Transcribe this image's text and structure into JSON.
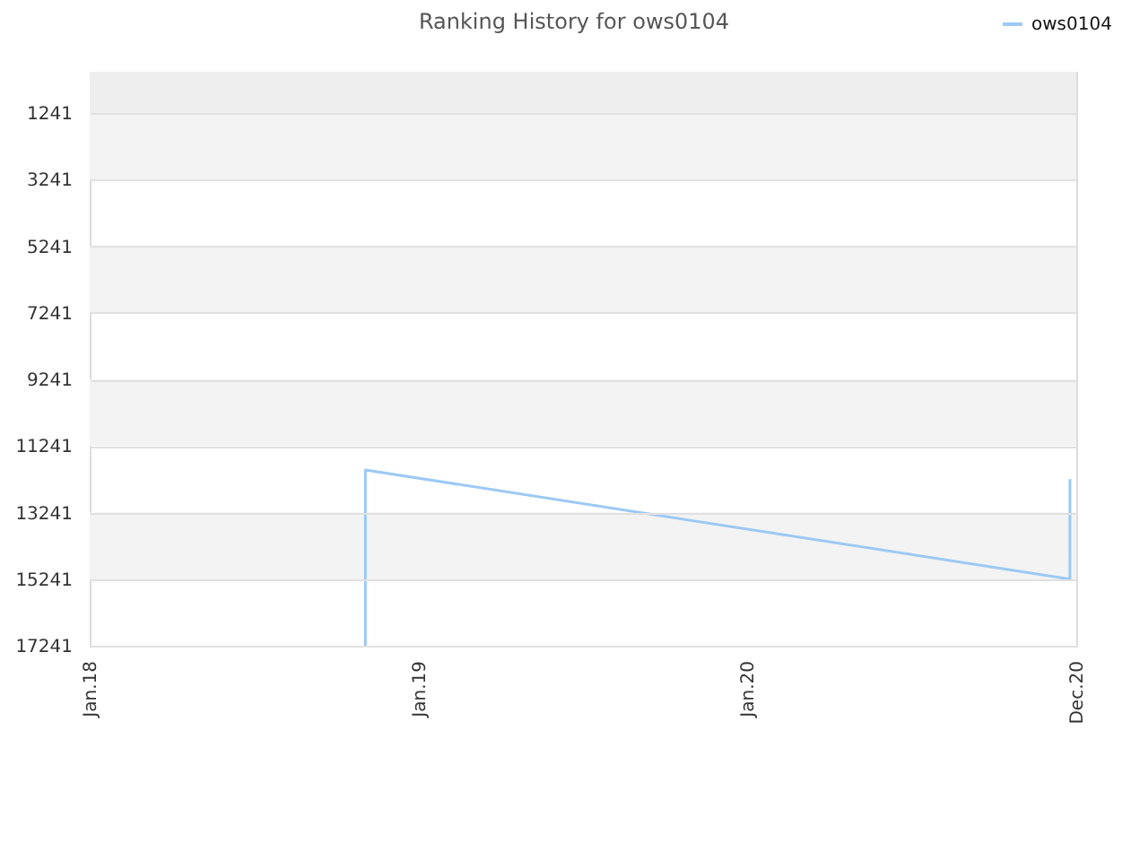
{
  "chart_data": {
    "type": "line",
    "title": "Ranking History for ows0104",
    "x": [
      "2018-11-03",
      "2018-11-03",
      "2020-12-24",
      "2020-12-24"
    ],
    "series": [
      {
        "name": "ows0104",
        "color": "#9cc9f5",
        "values": [
          17241,
          11960,
          15240,
          12240
        ]
      }
    ],
    "xlim": [
      "2018-01-01",
      "2020-12-31"
    ],
    "xticks": [
      {
        "value": "2018-01-01",
        "label": "Jan.18"
      },
      {
        "value": "2019-01-01",
        "label": "Jan.19"
      },
      {
        "value": "2020-01-01",
        "label": "Jan.20"
      },
      {
        "value": "2020-12-31",
        "label": "Dec.20"
      }
    ],
    "ylim": [
      17241,
      1
    ],
    "yticks": [
      1241,
      3241,
      5241,
      7241,
      9241,
      11241,
      13241,
      15241,
      17241
    ],
    "bands": [
      {
        "axis": "y",
        "from": 1,
        "to": 1241,
        "color": "#eeeeee"
      },
      {
        "axis": "y",
        "from": 1241,
        "to": 3241,
        "color": "#f3f3f3"
      },
      {
        "axis": "y",
        "from": 5241,
        "to": 7241,
        "color": "#f3f3f3"
      },
      {
        "axis": "y",
        "from": 9241,
        "to": 11241,
        "color": "#f3f3f3"
      },
      {
        "axis": "y",
        "from": 13241,
        "to": 15241,
        "color": "#f3f3f3"
      }
    ],
    "grid": "y",
    "legend": "top right"
  }
}
